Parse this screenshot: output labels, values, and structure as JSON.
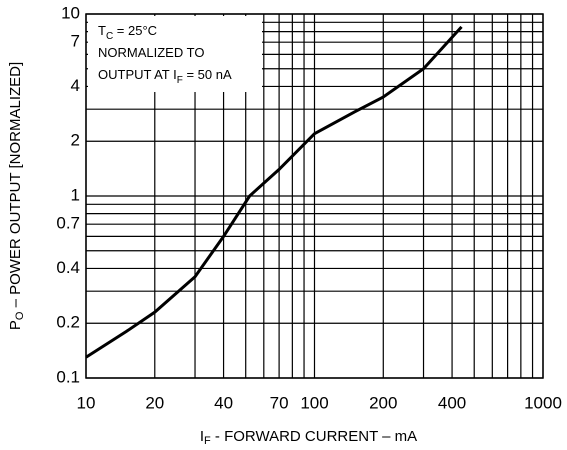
{
  "chart_data": {
    "type": "line",
    "log_x": true,
    "log_y": true,
    "grid": true,
    "x_label": {
      "main": "I",
      "sub": "F",
      "rest": " - FORWARD CURRENT – mA"
    },
    "y_label": {
      "main": "P",
      "sub": "O",
      "rest": " – POWER OUTPUT [NORMALIZED]"
    },
    "annotations": [
      {
        "main": "T",
        "sub": "C",
        "rest": " = 25°C"
      },
      {
        "main": "NORMALIZED TO"
      },
      {
        "main": "OUTPUT AT I",
        "sub": "F",
        "rest": " = 50 nA"
      }
    ],
    "xlim": [
      10,
      1000
    ],
    "ylim": [
      0.1,
      10
    ],
    "xticks": [
      10,
      20,
      40,
      70,
      100,
      200,
      400,
      1000
    ],
    "yticks": [
      0.1,
      0.2,
      0.4,
      0.7,
      1,
      2,
      4,
      7,
      10
    ],
    "xgrid": [
      10,
      20,
      30,
      40,
      50,
      60,
      70,
      80,
      90,
      100,
      200,
      300,
      400,
      500,
      600,
      700,
      800,
      900,
      1000
    ],
    "ygrid": [
      0.1,
      0.2,
      0.3,
      0.4,
      0.5,
      0.6,
      0.7,
      0.8,
      0.9,
      1,
      2,
      3,
      4,
      5,
      6,
      7,
      8,
      9,
      10
    ],
    "series": [
      {
        "color": "#000000",
        "x": [
          10,
          15,
          20,
          30,
          40,
          52,
          70,
          100,
          150,
          200,
          300,
          440
        ],
        "values": [
          0.13,
          0.18,
          0.23,
          0.36,
          0.6,
          1.0,
          1.4,
          2.2,
          2.9,
          3.5,
          5.0,
          8.5
        ]
      }
    ]
  }
}
